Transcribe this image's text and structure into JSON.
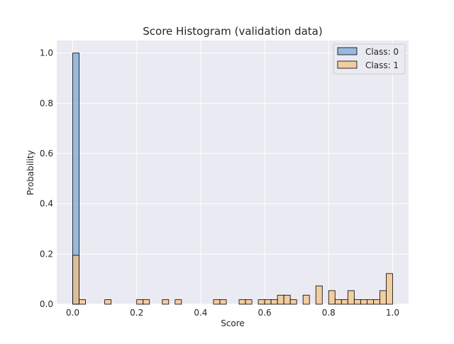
{
  "chart_data": {
    "type": "histogram",
    "title": "Score Histogram (validation data)",
    "xlabel": "Score",
    "ylabel": "Probability",
    "xlim": [
      -0.05,
      1.05
    ],
    "ylim": [
      0,
      1.05
    ],
    "xticks": [
      "0.0",
      "0.2",
      "0.4",
      "0.6",
      "0.8",
      "1.0"
    ],
    "yticks": [
      "0.0",
      "0.2",
      "0.4",
      "0.6",
      "0.8",
      "1.0"
    ],
    "grid": true,
    "legend_position": "top-right",
    "bin_edges_start": 0.0,
    "bin_width": 0.02,
    "series": [
      {
        "name": "Class: 0",
        "color": "#7aa6d6",
        "bins": [
          {
            "x0": 0.0,
            "x1": 0.02,
            "value": 1.0
          }
        ]
      },
      {
        "name": "Class: 1",
        "color": "#f4c27f",
        "bins": [
          {
            "x0": 0.0,
            "x1": 0.02,
            "value": 0.195
          },
          {
            "x0": 0.02,
            "x1": 0.04,
            "value": 0.018
          },
          {
            "x0": 0.1,
            "x1": 0.12,
            "value": 0.018
          },
          {
            "x0": 0.2,
            "x1": 0.22,
            "value": 0.018
          },
          {
            "x0": 0.22,
            "x1": 0.24,
            "value": 0.018
          },
          {
            "x0": 0.28,
            "x1": 0.3,
            "value": 0.018
          },
          {
            "x0": 0.32,
            "x1": 0.34,
            "value": 0.018
          },
          {
            "x0": 0.44,
            "x1": 0.46,
            "value": 0.018
          },
          {
            "x0": 0.46,
            "x1": 0.48,
            "value": 0.018
          },
          {
            "x0": 0.52,
            "x1": 0.54,
            "value": 0.018
          },
          {
            "x0": 0.54,
            "x1": 0.56,
            "value": 0.018
          },
          {
            "x0": 0.58,
            "x1": 0.6,
            "value": 0.018
          },
          {
            "x0": 0.6,
            "x1": 0.62,
            "value": 0.018
          },
          {
            "x0": 0.62,
            "x1": 0.64,
            "value": 0.018
          },
          {
            "x0": 0.64,
            "x1": 0.66,
            "value": 0.036
          },
          {
            "x0": 0.66,
            "x1": 0.68,
            "value": 0.036
          },
          {
            "x0": 0.68,
            "x1": 0.7,
            "value": 0.018
          },
          {
            "x0": 0.72,
            "x1": 0.74,
            "value": 0.036
          },
          {
            "x0": 0.76,
            "x1": 0.78,
            "value": 0.073
          },
          {
            "x0": 0.8,
            "x1": 0.82,
            "value": 0.054
          },
          {
            "x0": 0.82,
            "x1": 0.84,
            "value": 0.018
          },
          {
            "x0": 0.84,
            "x1": 0.86,
            "value": 0.018
          },
          {
            "x0": 0.86,
            "x1": 0.88,
            "value": 0.054
          },
          {
            "x0": 0.88,
            "x1": 0.9,
            "value": 0.018
          },
          {
            "x0": 0.9,
            "x1": 0.92,
            "value": 0.018
          },
          {
            "x0": 0.92,
            "x1": 0.94,
            "value": 0.018
          },
          {
            "x0": 0.94,
            "x1": 0.96,
            "value": 0.018
          },
          {
            "x0": 0.96,
            "x1": 0.98,
            "value": 0.054
          },
          {
            "x0": 0.98,
            "x1": 1.0,
            "value": 0.122
          }
        ]
      }
    ]
  }
}
